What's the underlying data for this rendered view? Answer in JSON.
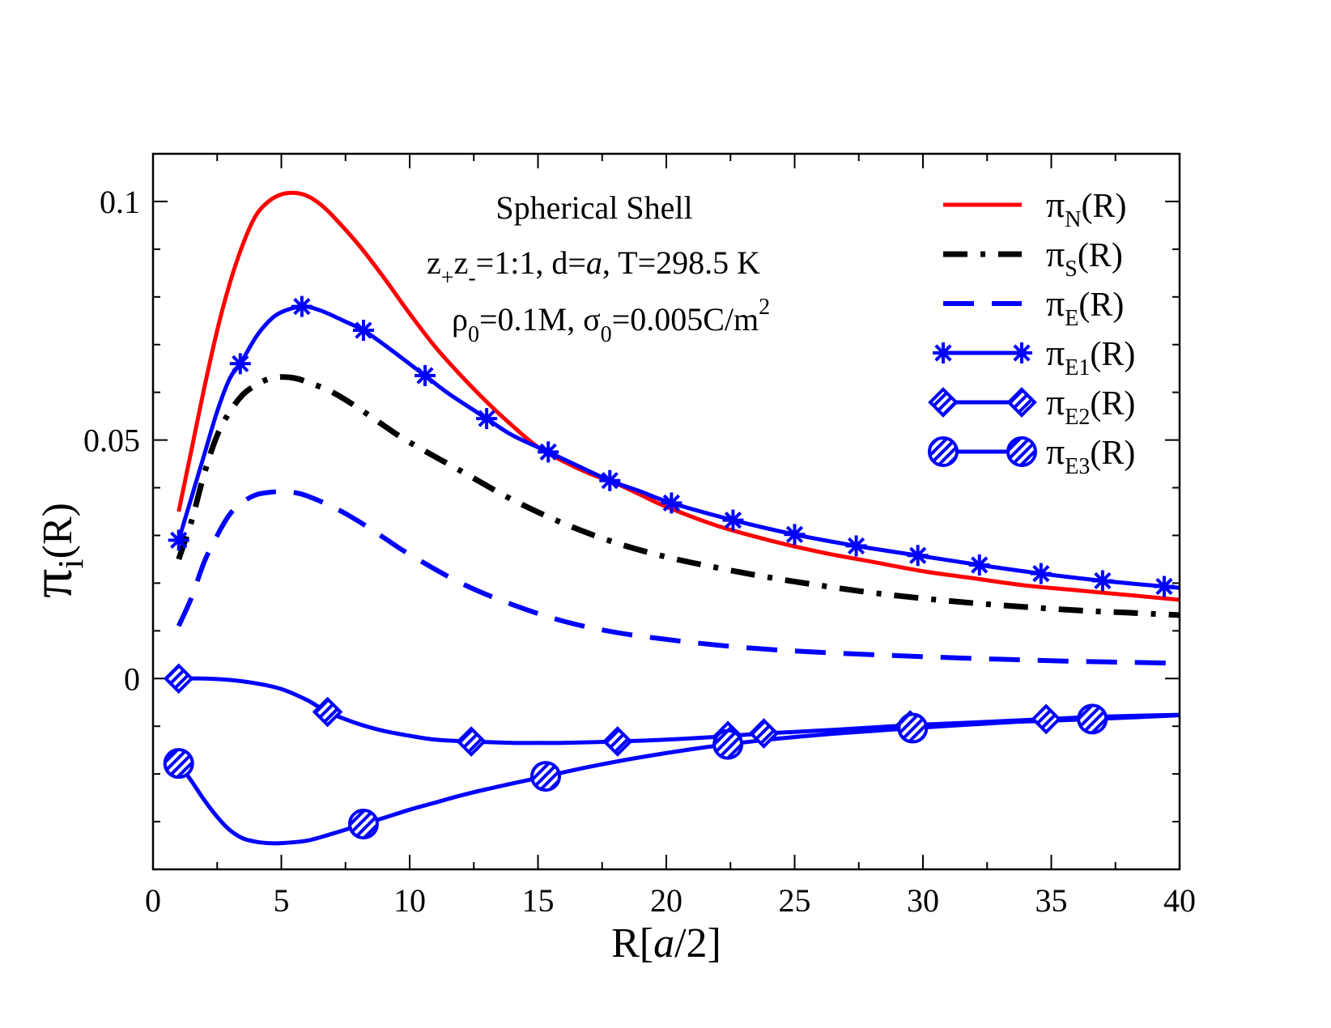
{
  "chart_data": {
    "type": "line",
    "annotations": {
      "title": "Spherical Shell",
      "line2": {
        "z1": "z",
        "sub_plus": "+",
        "z2": "z",
        "sub_minus": "-",
        "rest": "=1:1, d=",
        "a": "a",
        "temp": ", T=298.5 K"
      },
      "line3": {
        "rho": "ρ",
        "sub0a": "0",
        "conc": "=0.1M, σ",
        "sub0b": "0",
        "sigma_val": "=0.005C/m",
        "sup2": "2"
      }
    },
    "xlabel": {
      "prefix": "R[",
      "italic": "a",
      "suffix": "/2]"
    },
    "ylabel": {
      "pi": "π",
      "sub": "i",
      "suffix": "(R)"
    },
    "xlim": [
      0,
      40
    ],
    "ylim": [
      -0.04,
      0.11
    ],
    "xticks": [
      0,
      5,
      10,
      15,
      20,
      25,
      30,
      35,
      40
    ],
    "xtick_labels": [
      "0",
      "5",
      "10",
      "15",
      "20",
      "25",
      "30",
      "35",
      "40"
    ],
    "yticks": [
      0,
      0.05,
      0.1
    ],
    "ytick_labels": [
      "0",
      "0.05",
      "0.1"
    ],
    "series": [
      {
        "id": "piN",
        "pi": "π",
        "sub": "N",
        "suffix": "(R)",
        "color": "#ff0000",
        "style": "solid",
        "marker": "none",
        "x": [
          1,
          1.5,
          2,
          2.5,
          3,
          3.5,
          4,
          4.5,
          5,
          5.5,
          6,
          6.5,
          7,
          8,
          9,
          10,
          11,
          12,
          13,
          14,
          15,
          16,
          17,
          18,
          19,
          20,
          22,
          24,
          26,
          28,
          30,
          32,
          34,
          36,
          38,
          40
        ],
        "y": [
          0.035,
          0.048,
          0.061,
          0.073,
          0.083,
          0.091,
          0.097,
          0.1,
          0.1015,
          0.1018,
          0.1012,
          0.0995,
          0.097,
          0.091,
          0.084,
          0.0765,
          0.0695,
          0.0635,
          0.058,
          0.053,
          0.0485,
          0.0455,
          0.043,
          0.041,
          0.0385,
          0.036,
          0.032,
          0.029,
          0.0265,
          0.0245,
          0.0225,
          0.021,
          0.0195,
          0.0185,
          0.0175,
          0.0165
        ]
      },
      {
        "id": "piS",
        "pi": "π",
        "sub": "S",
        "suffix": "(R)",
        "color": "#000000",
        "style": "dashdot",
        "marker": "none",
        "x": [
          1,
          1.5,
          2,
          2.5,
          3,
          3.5,
          4,
          4.5,
          5,
          5.5,
          6,
          7,
          8,
          9,
          10,
          12,
          14,
          16,
          18,
          20,
          22,
          24,
          26,
          28,
          30,
          32,
          34,
          36,
          38,
          40
        ],
        "y": [
          0.025,
          0.033,
          0.043,
          0.051,
          0.056,
          0.0595,
          0.0615,
          0.0628,
          0.0632,
          0.063,
          0.0622,
          0.06,
          0.0567,
          0.053,
          0.0495,
          0.0435,
          0.0375,
          0.0325,
          0.0285,
          0.0255,
          0.0232,
          0.0212,
          0.0195,
          0.018,
          0.0168,
          0.0158,
          0.015,
          0.0143,
          0.0138,
          0.0133
        ]
      },
      {
        "id": "piE",
        "pi": "π",
        "sub": "E",
        "suffix": "(R)",
        "color": "#0000ff",
        "style": "dashed",
        "marker": "none",
        "x": [
          1,
          1.5,
          2,
          2.5,
          3,
          3.5,
          4,
          4.5,
          5,
          5.5,
          6,
          7,
          8,
          9,
          10,
          12,
          14,
          16,
          18,
          20,
          22,
          24,
          26,
          28,
          30,
          32,
          34,
          36,
          38,
          40
        ],
        "y": [
          0.011,
          0.017,
          0.0245,
          0.03,
          0.0345,
          0.037,
          0.0385,
          0.039,
          0.0392,
          0.039,
          0.0383,
          0.036,
          0.033,
          0.0295,
          0.026,
          0.02,
          0.0155,
          0.012,
          0.0097,
          0.0082,
          0.007,
          0.0061,
          0.0055,
          0.005,
          0.0046,
          0.0042,
          0.0039,
          0.0036,
          0.0034,
          0.0032
        ]
      },
      {
        "id": "piE1",
        "pi": "π",
        "sub": "E1",
        "suffix": "(R)",
        "color": "#0000ff",
        "style": "solid",
        "marker": "star",
        "x": [
          1,
          1.5,
          2,
          2.5,
          3,
          3.4,
          4,
          4.5,
          5,
          5.8,
          6.5,
          7.5,
          8.2,
          9,
          10.6,
          11.5,
          13,
          14,
          15.4,
          16.5,
          17.8,
          19,
          20.2,
          22.6,
          25,
          27.4,
          29.8,
          32.2,
          34.6,
          37,
          39.4,
          40
        ],
        "y": [
          0.029,
          0.038,
          0.047,
          0.056,
          0.063,
          0.066,
          0.0715,
          0.0748,
          0.0768,
          0.078,
          0.0772,
          0.0748,
          0.073,
          0.07,
          0.0635,
          0.0598,
          0.0545,
          0.051,
          0.0475,
          0.0447,
          0.0415,
          0.0392,
          0.0368,
          0.0332,
          0.0302,
          0.0278,
          0.0258,
          0.0238,
          0.022,
          0.0205,
          0.0193,
          0.019
        ]
      },
      {
        "id": "piE2",
        "pi": "π",
        "sub": "E2",
        "suffix": "(R)",
        "color": "#0000ff",
        "style": "solid",
        "marker": "diamond",
        "x": [
          1,
          2,
          3,
          4,
          5,
          6,
          6.8,
          8,
          9,
          10,
          11,
          12.4,
          14,
          15,
          16,
          18,
          20,
          22,
          23.8,
          25,
          27,
          29.5,
          32,
          34.8,
          37,
          40
        ],
        "y": [
          0,
          0,
          -0.0003,
          -0.001,
          -0.0022,
          -0.0045,
          -0.007,
          -0.0095,
          -0.011,
          -0.012,
          -0.0128,
          -0.0132,
          -0.0135,
          -0.0135,
          -0.0135,
          -0.0132,
          -0.0128,
          -0.0122,
          -0.0115,
          -0.0112,
          -0.0106,
          -0.0098,
          -0.0092,
          -0.0085,
          -0.008,
          -0.0076
        ]
      },
      {
        "id": "piE3",
        "pi": "π",
        "sub": "E3",
        "suffix": "(R)",
        "color": "#0000ff",
        "style": "solid",
        "marker": "circle",
        "x": [
          1,
          1.5,
          2,
          2.5,
          3,
          3.5,
          4,
          4.5,
          5,
          6,
          7,
          8.2,
          9,
          10,
          11,
          12,
          13,
          14,
          15.3,
          17,
          19,
          21,
          22.4,
          24,
          26,
          28,
          29.6,
          32,
          34,
          36.6,
          40
        ],
        "y": [
          -0.0178,
          -0.0215,
          -0.0255,
          -0.029,
          -0.0318,
          -0.0335,
          -0.0342,
          -0.0345,
          -0.0345,
          -0.034,
          -0.0325,
          -0.0305,
          -0.0292,
          -0.0275,
          -0.026,
          -0.0245,
          -0.0232,
          -0.022,
          -0.0205,
          -0.0185,
          -0.0165,
          -0.0148,
          -0.0138,
          -0.0128,
          -0.0118,
          -0.011,
          -0.0104,
          -0.0096,
          -0.009,
          -0.0085,
          -0.0077
        ]
      }
    ],
    "marker_points": {
      "piE1": [
        1,
        3.4,
        5.8,
        8.2,
        10.6,
        13,
        15.4,
        17.8,
        20.2,
        22.6,
        25,
        27.4,
        29.8,
        32.2,
        34.6,
        37,
        39.4
      ],
      "piE2": [
        1,
        6.8,
        12.4,
        18.1,
        22.4,
        23.8,
        29.5,
        34.8
      ],
      "piE3": [
        1,
        8.2,
        15.3,
        22.4,
        29.6,
        36.6
      ]
    },
    "legend_position": "top-right",
    "grid": false
  }
}
